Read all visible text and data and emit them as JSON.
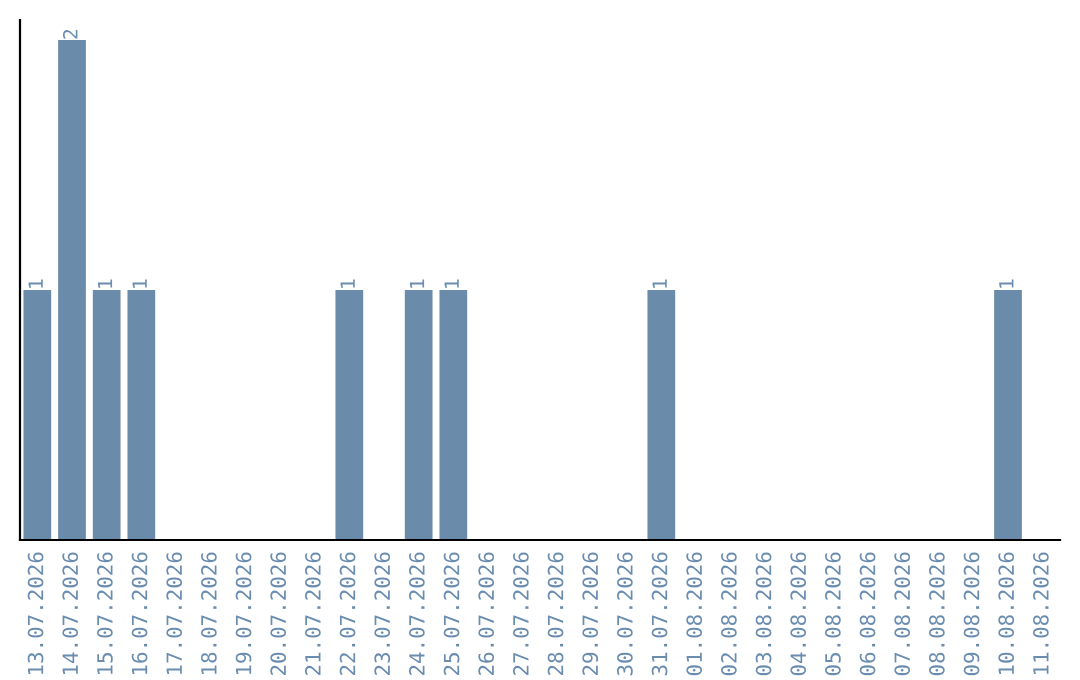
{
  "chart_data": {
    "type": "bar",
    "categories": [
      "13.07.2026",
      "14.07.2026",
      "15.07.2026",
      "16.07.2026",
      "17.07.2026",
      "18.07.2026",
      "19.07.2026",
      "20.07.2026",
      "21.07.2026",
      "22.07.2026",
      "23.07.2026",
      "24.07.2026",
      "25.07.2026",
      "26.07.2026",
      "27.07.2026",
      "28.07.2026",
      "29.07.2026",
      "30.07.2026",
      "31.07.2026",
      "01.08.2026",
      "02.08.2026",
      "03.08.2026",
      "04.08.2026",
      "05.08.2026",
      "06.08.2026",
      "07.08.2026",
      "08.08.2026",
      "09.08.2026",
      "10.08.2026",
      "11.08.2026"
    ],
    "values": [
      1,
      2,
      1,
      1,
      0,
      0,
      0,
      0,
      0,
      1,
      0,
      1,
      1,
      0,
      0,
      0,
      0,
      0,
      1,
      0,
      0,
      0,
      0,
      0,
      0,
      0,
      0,
      0,
      1,
      0
    ],
    "value_labels": [
      "1",
      "2",
      "1",
      "1",
      null,
      null,
      null,
      null,
      null,
      "1",
      null,
      "1",
      "1",
      null,
      null,
      null,
      null,
      null,
      "1",
      null,
      null,
      null,
      null,
      null,
      null,
      null,
      null,
      null,
      "1",
      null
    ],
    "color": "#6a8caa",
    "ylim": [
      0,
      2.08
    ],
    "tick_labels": "x",
    "grid": false,
    "legend": false
  }
}
